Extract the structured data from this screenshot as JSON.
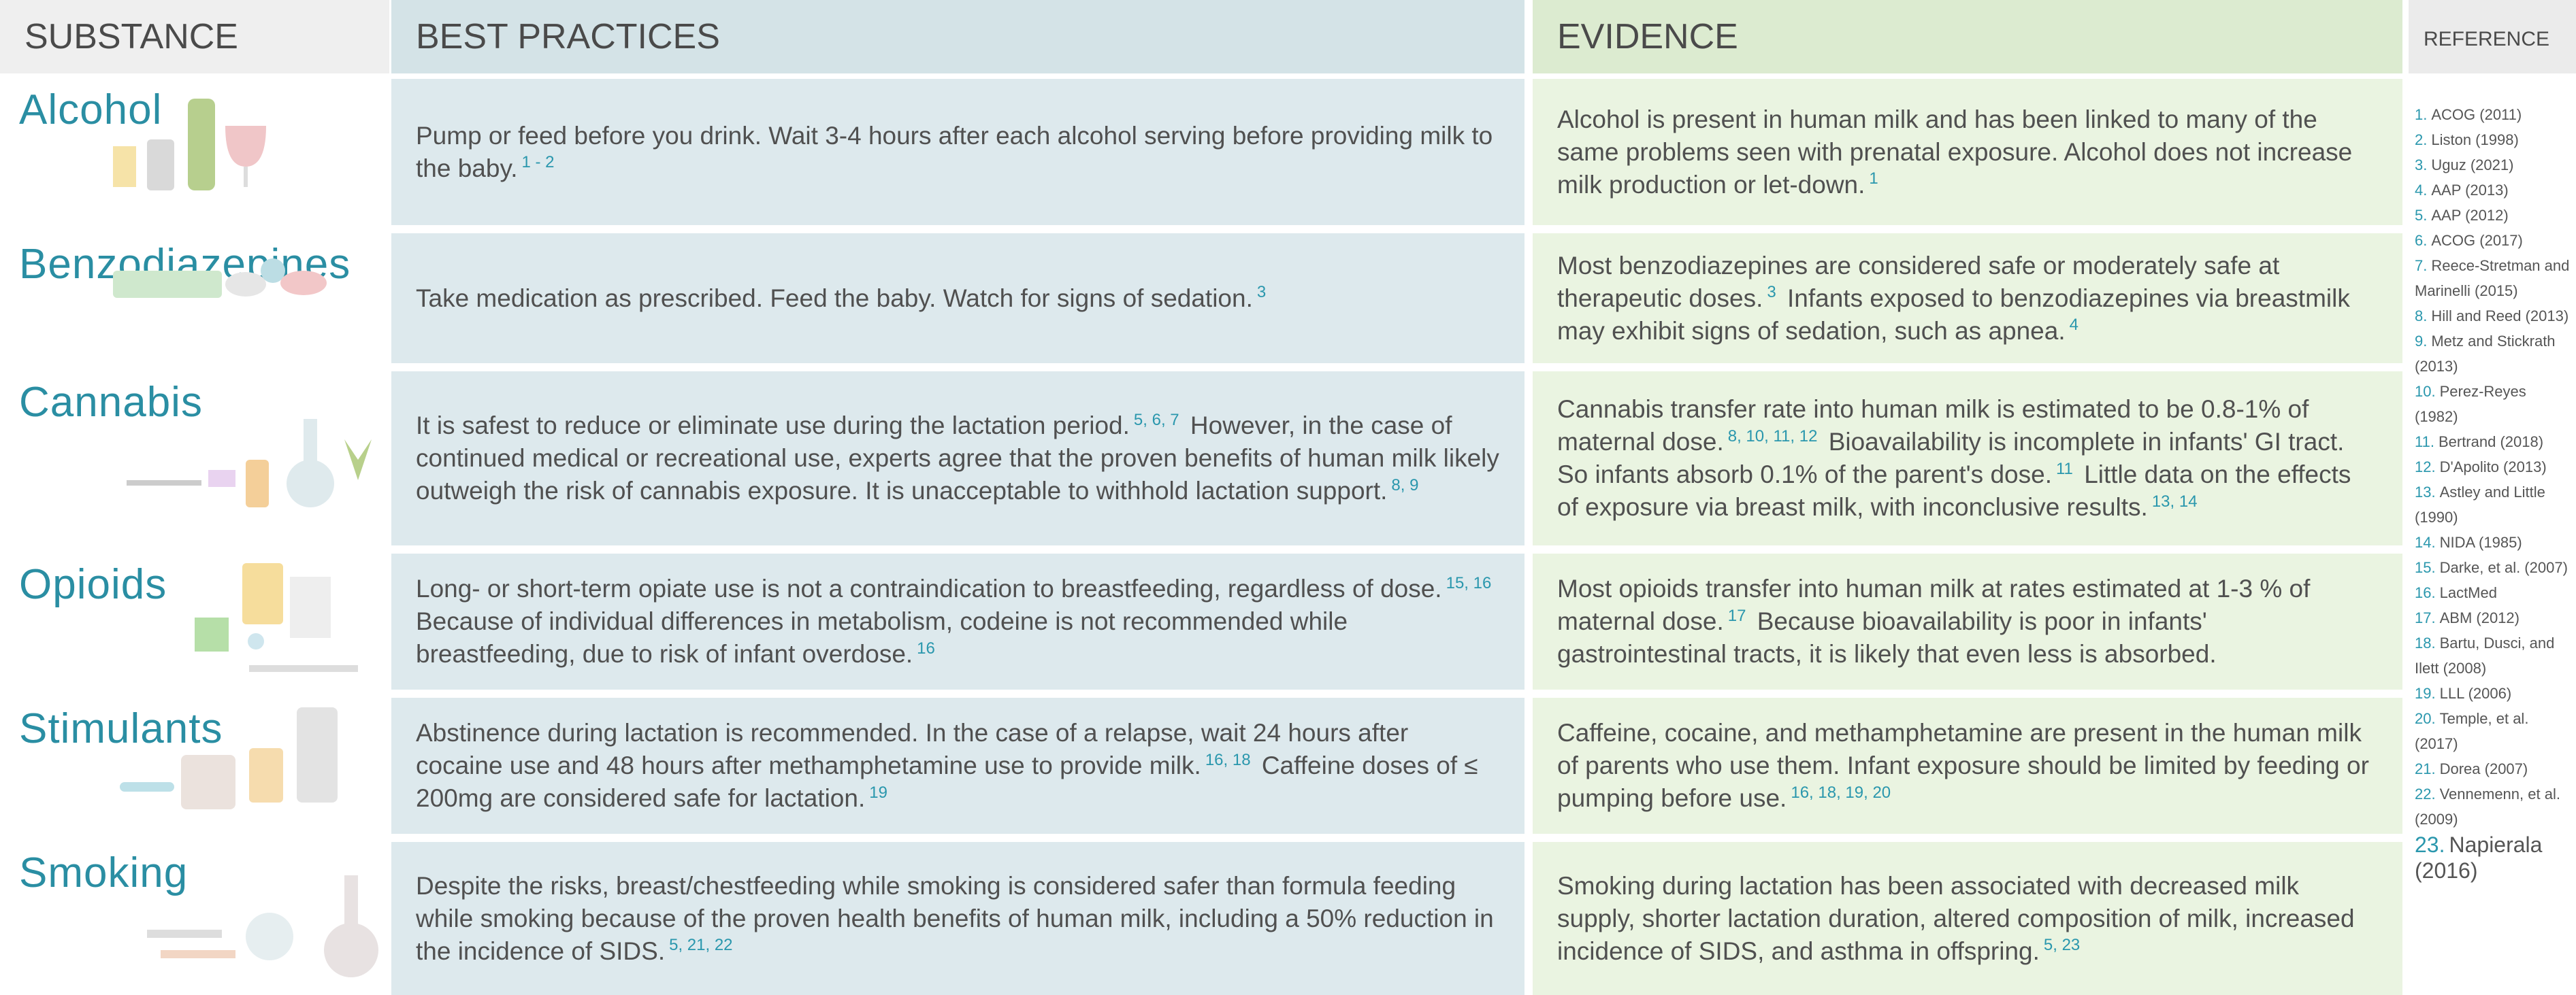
{
  "header": {
    "substance": "SUBSTANCE",
    "best_practices": "BEST PRACTICES",
    "evidence": "EVIDENCE",
    "reference": "REFERENCE"
  },
  "rows": [
    {
      "substance": "Alcohol",
      "best_practice": [
        {
          "text": "Pump or feed before you drink. Wait 3-4 hours after each alcohol serving before providing milk to the baby."
        },
        {
          "sup": "1 - 2"
        }
      ],
      "evidence": [
        {
          "text": "Alcohol is present in human milk and has been linked to many of the same problems seen with prenatal exposure. Alcohol does not increase milk production or let-down."
        },
        {
          "sup": "1"
        }
      ]
    },
    {
      "substance": "Benzodiazepines",
      "best_practice": [
        {
          "text": "Take medication as prescribed. Feed the baby. Watch for signs of sedation."
        },
        {
          "sup": "3"
        }
      ],
      "evidence": [
        {
          "text": "Most benzodiazepines are considered safe or moderately safe at therapeutic doses."
        },
        {
          "sup": "3"
        },
        {
          "text": "Infants exposed to benzodiazepines via breastmilk may exhibit signs of sedation, such as apnea."
        },
        {
          "sup": "4"
        }
      ]
    },
    {
      "substance": "Cannabis",
      "best_practice": [
        {
          "text": "It is safest to reduce or eliminate use during the lactation period."
        },
        {
          "sup": "5, 6, 7"
        },
        {
          "text": "However, in the case of continued medical or recreational use, experts agree that the proven benefits of human milk likely outweigh the risk of cannabis exposure. It is unacceptable to withhold lactation support."
        },
        {
          "sup": "8, 9"
        }
      ],
      "evidence": [
        {
          "text": "Cannabis transfer rate into human milk is estimated to be 0.8-1% of maternal dose."
        },
        {
          "sup": "8, 10, 11, 12"
        },
        {
          "text": "Bioavailability is incomplete in infants' GI tract. So infants absorb 0.1% of the parent's dose."
        },
        {
          "sup": "11"
        },
        {
          "text": "Little data on the effects of exposure via breast milk, with inconclusive results."
        },
        {
          "sup": "13, 14"
        }
      ]
    },
    {
      "substance": "Opioids",
      "best_practice": [
        {
          "text": "Long- or short-term opiate use is not a contraindication to breastfeeding, regardless of dose."
        },
        {
          "sup": "15, 16"
        },
        {
          "text": "Because of individual differences in metabolism, codeine is not recommended while breastfeeding, due to risk of infant overdose."
        },
        {
          "sup": "16"
        }
      ],
      "evidence": [
        {
          "text": "Most opioids transfer into human milk at rates estimated at 1-3 %  of maternal dose."
        },
        {
          "sup": "17"
        },
        {
          "text": "Because bioavailability is poor in infants' gastrointestinal tracts, it is likely that even less is absorbed."
        }
      ]
    },
    {
      "substance": "Stimulants",
      "best_practice": [
        {
          "text": "Abstinence during lactation is recommended. In the case of a relapse, wait 24 hours after cocaine use and 48 hours after methamphetamine use to provide milk."
        },
        {
          "sup": "16, 18"
        },
        {
          "text": "Caffeine doses of ≤ 200mg are considered safe for lactation."
        },
        {
          "sup": "19"
        }
      ],
      "evidence": [
        {
          "text": "Caffeine, cocaine, and methamphetamine are present in the human milk of parents who use them. Infant exposure should be limited by feeding or pumping before use."
        },
        {
          "sup": "16, 18, 19, 20"
        }
      ]
    },
    {
      "substance": "Smoking",
      "best_practice": [
        {
          "text": "Despite the risks, breast/chestfeeding while smoking is considered safer than formula feeding while smoking because of the proven health benefits of human milk, including a 50% reduction in the incidence of SIDS."
        },
        {
          "sup": "5, 21, 22"
        }
      ],
      "evidence": [
        {
          "text": "Smoking during lactation has been associated with decreased milk supply, shorter lactation duration, altered composition of milk, increased incidence of SIDS, and asthma in offspring."
        },
        {
          "sup": "5, 23"
        }
      ]
    }
  ],
  "references": [
    {
      "num": "1.",
      "text": "ACOG (2011)"
    },
    {
      "num": "2.",
      "text": "Liston (1998)"
    },
    {
      "num": "3.",
      "text": "Uguz (2021)"
    },
    {
      "num": "4.",
      "text": "AAP (2013)"
    },
    {
      "num": "5.",
      "text": "AAP (2012)"
    },
    {
      "num": "6.",
      "text": "ACOG (2017)"
    },
    {
      "num": "7.",
      "text": "Reece-Stretman and Marinelli (2015)"
    },
    {
      "num": "8.",
      "text": "Hill and Reed (2013)"
    },
    {
      "num": "9.",
      "text": "Metz and Stickrath (2013)"
    },
    {
      "num": "10.",
      "text": "Perez-Reyes (1982)"
    },
    {
      "num": "11.",
      "text": "Bertrand (2018)"
    },
    {
      "num": "12.",
      "text": "D'Apolito (2013)"
    },
    {
      "num": "13.",
      "text": "Astley and Little (1990)"
    },
    {
      "num": "14.",
      "text": "NIDA (1985)"
    },
    {
      "num": "15.",
      "text": "Darke, et al. (2007)"
    },
    {
      "num": "16.",
      "text": "LactMed"
    },
    {
      "num": "17.",
      "text": "ABM (2012)"
    },
    {
      "num": "18.",
      "text": "Bartu, Dusci, and Ilett (2008)"
    },
    {
      "num": "19.",
      "text": "LLL (2006)"
    },
    {
      "num": "20.",
      "text": "Temple, et al. (2017)"
    },
    {
      "num": "21.",
      "text": "Dorea (2007)"
    },
    {
      "num": "22.",
      "text": "Vennemenn, et al. (2009)"
    },
    {
      "num": "23.",
      "text": "Napierala (2016)"
    }
  ]
}
